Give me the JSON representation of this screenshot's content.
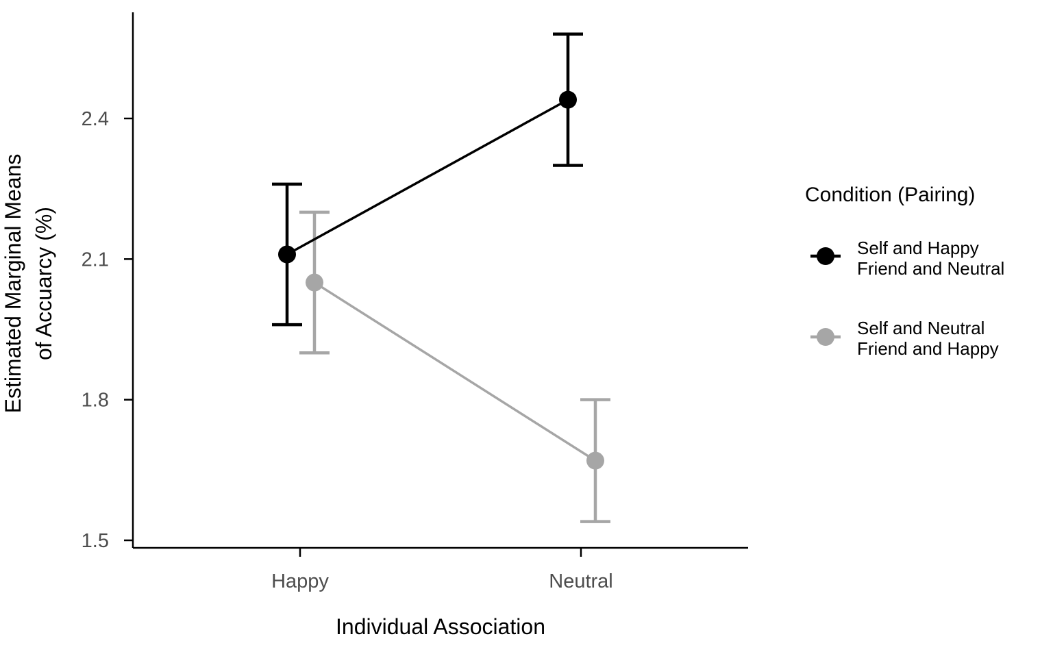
{
  "chart_data": {
    "type": "line",
    "x_axis": {
      "title": "Individual Association",
      "categories": [
        "Happy",
        "Neutral"
      ]
    },
    "y_axis": {
      "title_lines": [
        "Estimated Marginal Means",
        "of Accuarcy (%)"
      ],
      "ticks": [
        1.5,
        1.8,
        2.1,
        2.4
      ],
      "tick_labels": [
        "1.5",
        "1.8",
        "2.1",
        "2.4"
      ],
      "range": [
        1.5,
        2.66
      ]
    },
    "legend": {
      "title": "Condition (Pairing)",
      "placement": "right"
    },
    "series": [
      {
        "name_lines": [
          "Self and Happy",
          "Friend and Neutral"
        ],
        "color": "#000000",
        "values": [
          2.11,
          2.44
        ],
        "error_lower": [
          1.96,
          2.3
        ],
        "error_upper": [
          2.26,
          2.58
        ]
      },
      {
        "name_lines": [
          "Self and Neutral",
          "Friend and Happy"
        ],
        "color": "#a6a6a6",
        "values": [
          2.05,
          1.67
        ],
        "error_lower": [
          1.9,
          1.54
        ],
        "error_upper": [
          2.2,
          1.8
        ]
      }
    ],
    "grid": false
  }
}
